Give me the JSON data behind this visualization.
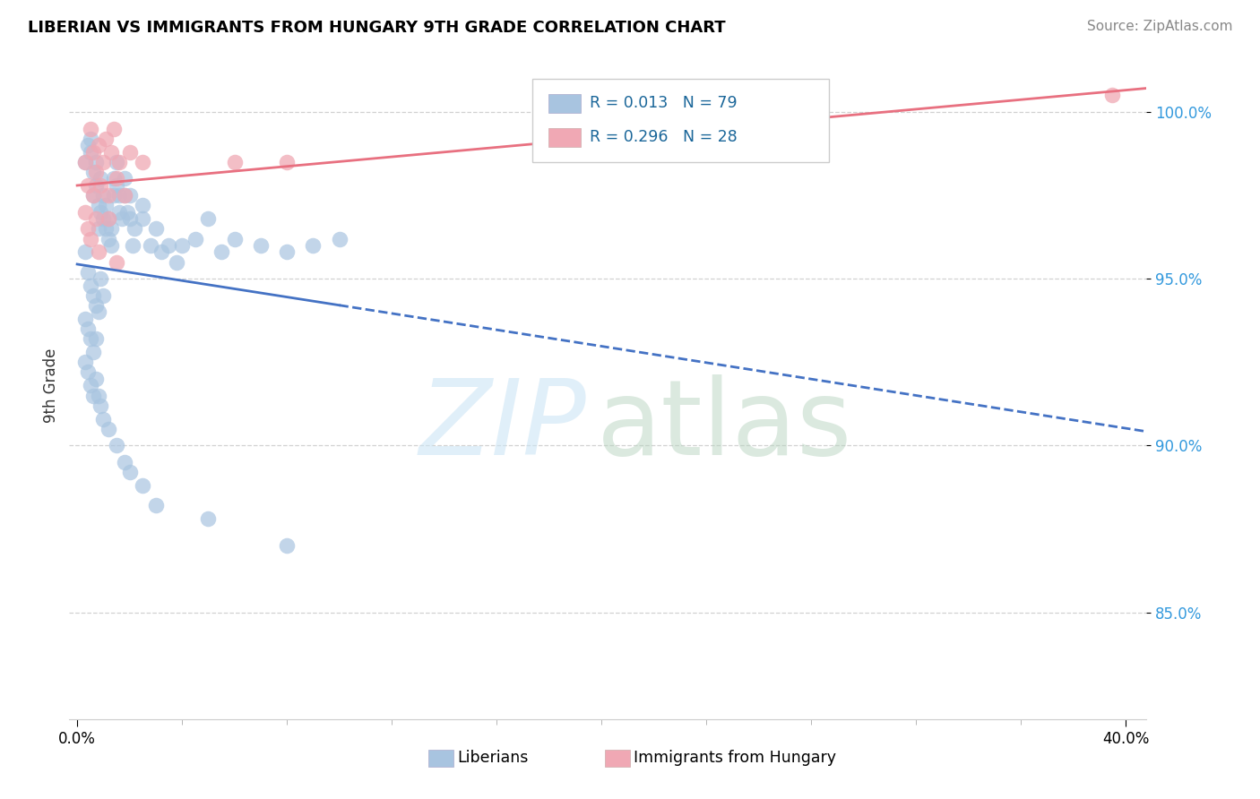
{
  "title": "LIBERIAN VS IMMIGRANTS FROM HUNGARY 9TH GRADE CORRELATION CHART",
  "source": "Source: ZipAtlas.com",
  "ylabel": "9th Grade",
  "ytick_labels": [
    "85.0%",
    "90.0%",
    "95.0%",
    "100.0%"
  ],
  "ytick_values": [
    0.85,
    0.9,
    0.95,
    1.0
  ],
  "xtick_labels": [
    "0.0%",
    "40.0%"
  ],
  "xtick_values": [
    0.0,
    0.4
  ],
  "xlim": [
    -0.003,
    0.408
  ],
  "ylim": [
    0.818,
    1.018
  ],
  "liberian_color": "#a8c4e0",
  "hungary_color": "#f0a8b4",
  "liberian_line_color": "#4472c4",
  "hungary_line_color": "#e87080",
  "legend_r1": "R = 0.013   N = 79",
  "legend_r2": "R = 0.296   N = 28",
  "grid_color": "#cccccc",
  "title_fontsize": 13,
  "tick_fontsize": 12,
  "source_color": "#888888",
  "ytick_color": "#3399dd",
  "watermark_zip_color": "#cce5f5",
  "watermark_atlas_color": "#b8d4c0",
  "lib_x": [
    0.003,
    0.004,
    0.005,
    0.005,
    0.006,
    0.006,
    0.007,
    0.007,
    0.008,
    0.008,
    0.009,
    0.009,
    0.01,
    0.01,
    0.011,
    0.011,
    0.012,
    0.012,
    0.013,
    0.013,
    0.014,
    0.014,
    0.015,
    0.015,
    0.016,
    0.016,
    0.017,
    0.018,
    0.018,
    0.019,
    0.02,
    0.02,
    0.021,
    0.022,
    0.025,
    0.025,
    0.028,
    0.03,
    0.032,
    0.035,
    0.038,
    0.04,
    0.045,
    0.05,
    0.055,
    0.06,
    0.07,
    0.08,
    0.09,
    0.1,
    0.003,
    0.004,
    0.005,
    0.006,
    0.007,
    0.008,
    0.009,
    0.01,
    0.003,
    0.004,
    0.005,
    0.006,
    0.007,
    0.003,
    0.004,
    0.005,
    0.006,
    0.007,
    0.008,
    0.009,
    0.01,
    0.012,
    0.015,
    0.018,
    0.02,
    0.025,
    0.03,
    0.05,
    0.08
  ],
  "lib_y": [
    0.985,
    0.99,
    0.988,
    0.992,
    0.982,
    0.975,
    0.978,
    0.985,
    0.972,
    0.965,
    0.97,
    0.98,
    0.968,
    0.975,
    0.965,
    0.972,
    0.962,
    0.968,
    0.96,
    0.965,
    0.975,
    0.98,
    0.978,
    0.985,
    0.97,
    0.975,
    0.968,
    0.975,
    0.98,
    0.97,
    0.975,
    0.968,
    0.96,
    0.965,
    0.968,
    0.972,
    0.96,
    0.965,
    0.958,
    0.96,
    0.955,
    0.96,
    0.962,
    0.968,
    0.958,
    0.962,
    0.96,
    0.958,
    0.96,
    0.962,
    0.958,
    0.952,
    0.948,
    0.945,
    0.942,
    0.94,
    0.95,
    0.945,
    0.938,
    0.935,
    0.932,
    0.928,
    0.932,
    0.925,
    0.922,
    0.918,
    0.915,
    0.92,
    0.915,
    0.912,
    0.908,
    0.905,
    0.9,
    0.895,
    0.892,
    0.888,
    0.882,
    0.878,
    0.87
  ],
  "hun_x": [
    0.003,
    0.004,
    0.005,
    0.006,
    0.007,
    0.008,
    0.009,
    0.01,
    0.011,
    0.012,
    0.013,
    0.014,
    0.015,
    0.016,
    0.018,
    0.02,
    0.025,
    0.06,
    0.08,
    0.003,
    0.004,
    0.005,
    0.006,
    0.007,
    0.008,
    0.012,
    0.015,
    0.395
  ],
  "hun_y": [
    0.985,
    0.978,
    0.995,
    0.988,
    0.982,
    0.99,
    0.978,
    0.985,
    0.992,
    0.975,
    0.988,
    0.995,
    0.98,
    0.985,
    0.975,
    0.988,
    0.985,
    0.985,
    0.985,
    0.97,
    0.965,
    0.962,
    0.975,
    0.968,
    0.958,
    0.968,
    0.955,
    1.005
  ]
}
